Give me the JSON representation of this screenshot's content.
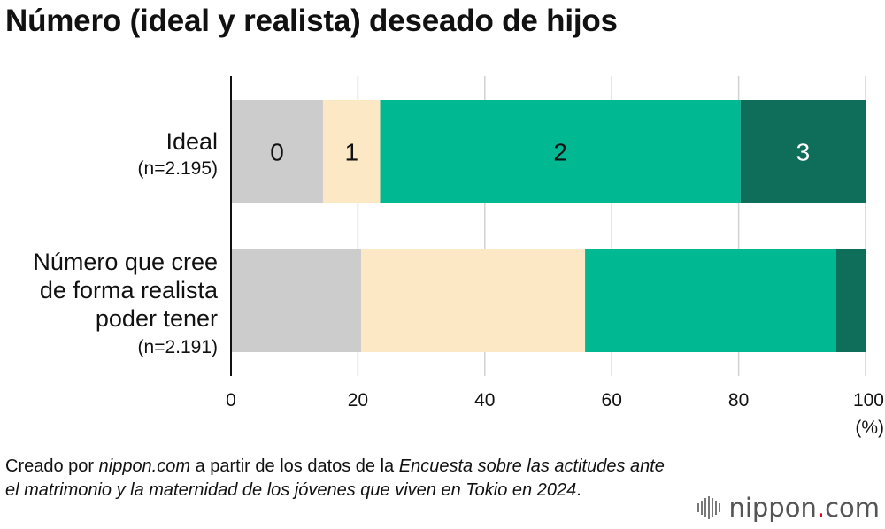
{
  "title": "Número (ideal y realista) deseado de hijos",
  "chart_data": {
    "type": "bar",
    "orientation": "horizontal",
    "stacked": true,
    "categories": [
      {
        "lines": [
          "Ideal"
        ],
        "n": "(n=2.195)"
      },
      {
        "lines": [
          "Número que cree",
          "de forma realista",
          "poder tener"
        ],
        "n": "(n=2.191)"
      }
    ],
    "series": [
      {
        "name": "0",
        "color": "#cccccc",
        "text_color": "#111111",
        "values": [
          14.5,
          20.5
        ]
      },
      {
        "name": "1",
        "color": "#fde8c6",
        "text_color": "#111111",
        "values": [
          9.0,
          35.3
        ]
      },
      {
        "name": "2",
        "color": "#00b892",
        "text_color": "#111111",
        "values": [
          56.8,
          39.6
        ]
      },
      {
        "name": "3",
        "color": "#0e6e5a",
        "text_color": "#ffffff",
        "values": [
          19.7,
          4.6
        ]
      }
    ],
    "xlim": [
      0,
      100
    ],
    "xticks": [
      "0",
      "20",
      "40",
      "60",
      "80",
      "100"
    ],
    "xunit": "(%)",
    "grid": true,
    "legend": "inside first bar"
  },
  "source": {
    "p1": "Creado por ",
    "site": "nippon.com",
    "p2": " a partir de los datos de la ",
    "survey": "Encuesta sobre las actitudes ante el matrimonio y la maternidad de los jóvenes que viven en Tokio en 2024",
    "p3": "."
  },
  "logo": {
    "name": "nippon",
    "dot": ".",
    "tld": "com"
  }
}
